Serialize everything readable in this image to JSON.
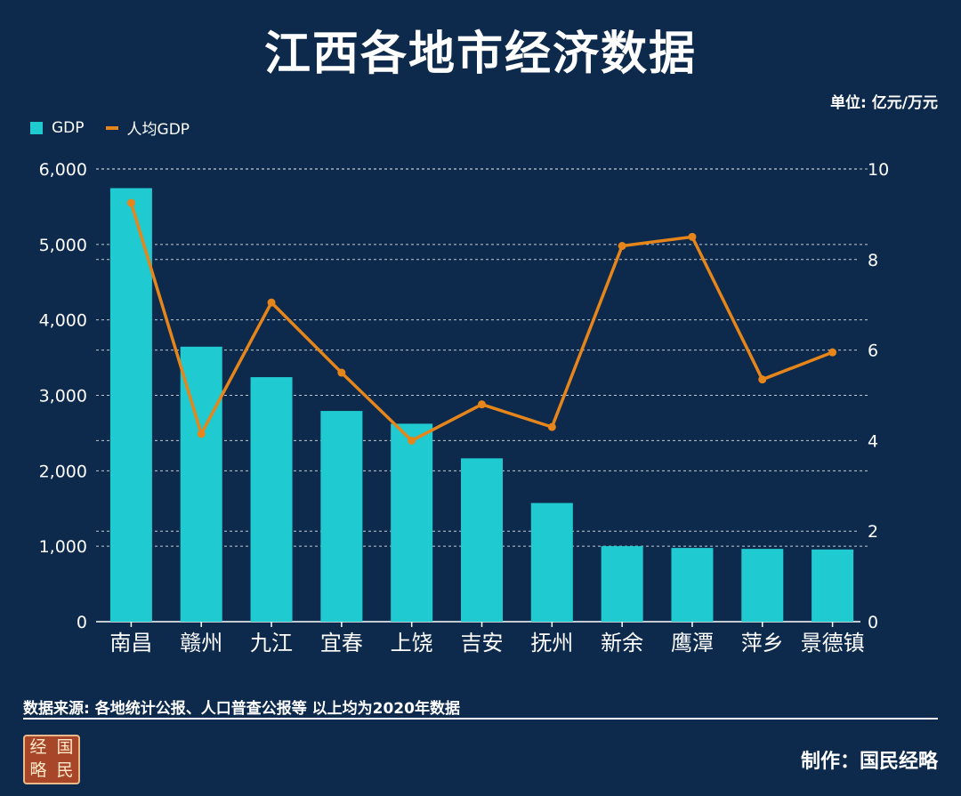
{
  "title": "江西各地市经济数据",
  "unit": "单位: 亿元/万元",
  "legend": {
    "bar_label": "GDP",
    "line_label": "人均GDP"
  },
  "source": "数据来源: 各地统计公报、人口普查公报等  以上均为2020年数据",
  "credit": "制作：国民经略",
  "logo_chars": [
    "经",
    "国",
    "略",
    "民"
  ],
  "colors": {
    "background": "#0d2a4d",
    "bar": "#1fcad0",
    "line": "#e6851a",
    "text": "#ffffff"
  },
  "chart_data": {
    "type": "bar",
    "categories": [
      "南昌",
      "赣州",
      "九江",
      "宜春",
      "上饶",
      "吉安",
      "抚州",
      "新余",
      "鹰潭",
      "萍乡",
      "景德镇"
    ],
    "series": [
      {
        "name": "GDP",
        "type": "bar",
        "axis": "left",
        "values": [
          5746,
          3645,
          3241,
          2793,
          2624,
          2165,
          1573,
          1001,
          977,
          965,
          957
        ]
      },
      {
        "name": "人均GDP",
        "type": "line",
        "axis": "right",
        "values": [
          9.25,
          4.15,
          7.05,
          5.5,
          4.0,
          4.8,
          4.3,
          8.3,
          8.5,
          5.35,
          5.95
        ]
      }
    ],
    "y_left": {
      "min": 0,
      "max": 6000,
      "ticks": [
        0,
        1000,
        2000,
        3000,
        4000,
        5000,
        6000
      ],
      "tick_labels": [
        "0",
        "1,000",
        "2,000",
        "3,000",
        "4,000",
        "5,000",
        "6,000"
      ]
    },
    "y_right": {
      "min": 0,
      "max": 10,
      "ticks": [
        0,
        2,
        4,
        6,
        8,
        10
      ],
      "tick_labels": [
        "0",
        "2",
        "4",
        "6",
        "8",
        "10"
      ]
    },
    "grid": true,
    "legend_position": "top-left"
  }
}
